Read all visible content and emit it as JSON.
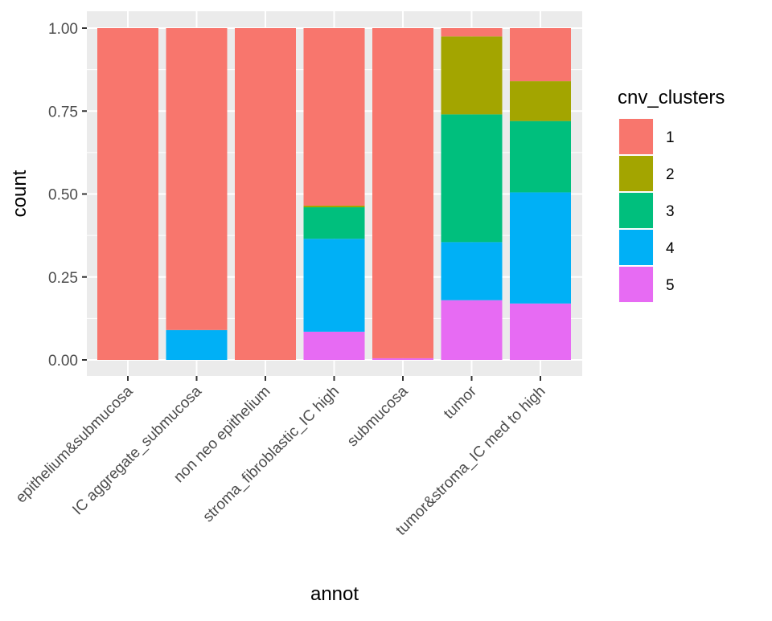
{
  "chart_data": {
    "type": "bar",
    "stacked": true,
    "title": "",
    "xlabel": "annot",
    "ylabel": "count",
    "ylim": [
      0,
      1
    ],
    "yticks": [
      "0.00",
      "0.25",
      "0.50",
      "0.75",
      "1.00"
    ],
    "categories": [
      "epithelium&submucosa",
      "IC aggregate_submucosa",
      "non neo epithelium",
      "stroma_fibroblastic_IC high",
      "submucosa",
      "tumor",
      "tumor&stroma_IC med to high"
    ],
    "legend": {
      "title": "cnv_clusters",
      "position": "right"
    },
    "series": [
      {
        "name": "1",
        "color": "#F8766D",
        "values": [
          1.0,
          0.91,
          1.0,
          0.535,
          0.995,
          0.025,
          0.16
        ]
      },
      {
        "name": "2",
        "color": "#A3A500",
        "values": [
          0.0,
          0.0,
          0.0,
          0.005,
          0.0,
          0.235,
          0.12
        ]
      },
      {
        "name": "3",
        "color": "#00BF7D",
        "values": [
          0.0,
          0.0,
          0.0,
          0.095,
          0.0,
          0.385,
          0.215
        ]
      },
      {
        "name": "4",
        "color": "#00B0F6",
        "values": [
          0.0,
          0.09,
          0.0,
          0.28,
          0.0,
          0.175,
          0.335
        ]
      },
      {
        "name": "5",
        "color": "#E76BF3",
        "values": [
          0.0,
          0.0,
          0.0,
          0.085,
          0.005,
          0.18,
          0.17
        ]
      }
    ],
    "grid": true
  }
}
